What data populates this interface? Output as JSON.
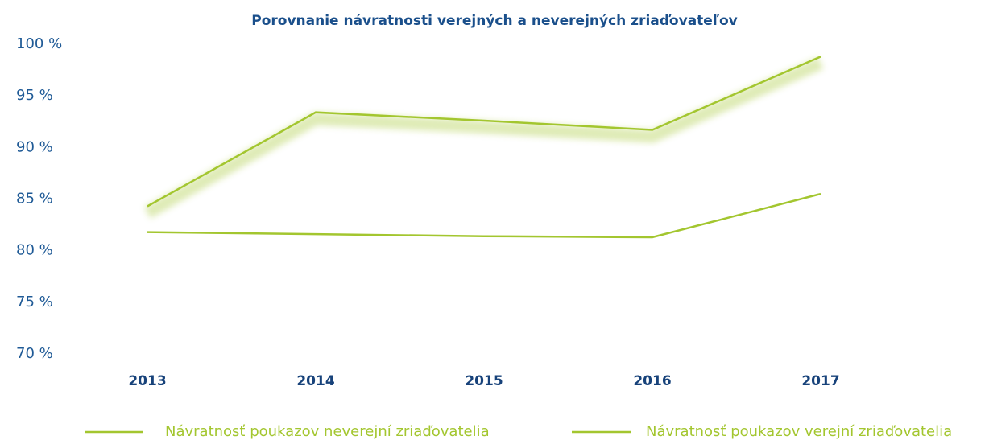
{
  "chart_data": {
    "type": "line",
    "title": "Porovnanie návratnosti verejných a neverejných zriaďovateľov",
    "categories": [
      "2013",
      "2014",
      "2015",
      "2016",
      "2017"
    ],
    "series": [
      {
        "name": "Návratnosť poukazov neverejní zriaďovatelia",
        "color": "#a3c62f",
        "values": [
          84.3,
          93.4,
          92.6,
          91.7,
          98.8
        ]
      },
      {
        "name": "Návratnosť poukazov verejní zriaďovatelia",
        "color": "#a3c62f",
        "values": [
          81.8,
          81.6,
          81.4,
          81.3,
          85.5
        ]
      }
    ],
    "ylim": [
      70,
      100
    ],
    "yticks": [
      {
        "value": 70,
        "label": "70 %"
      },
      {
        "value": 75,
        "label": "75 %"
      },
      {
        "value": 80,
        "label": "80 %"
      },
      {
        "value": 85,
        "label": "85 %"
      },
      {
        "value": 90,
        "label": "90 %"
      },
      {
        "value": 95,
        "label": "95 %"
      },
      {
        "value": 100,
        "label": "100 %"
      }
    ]
  }
}
